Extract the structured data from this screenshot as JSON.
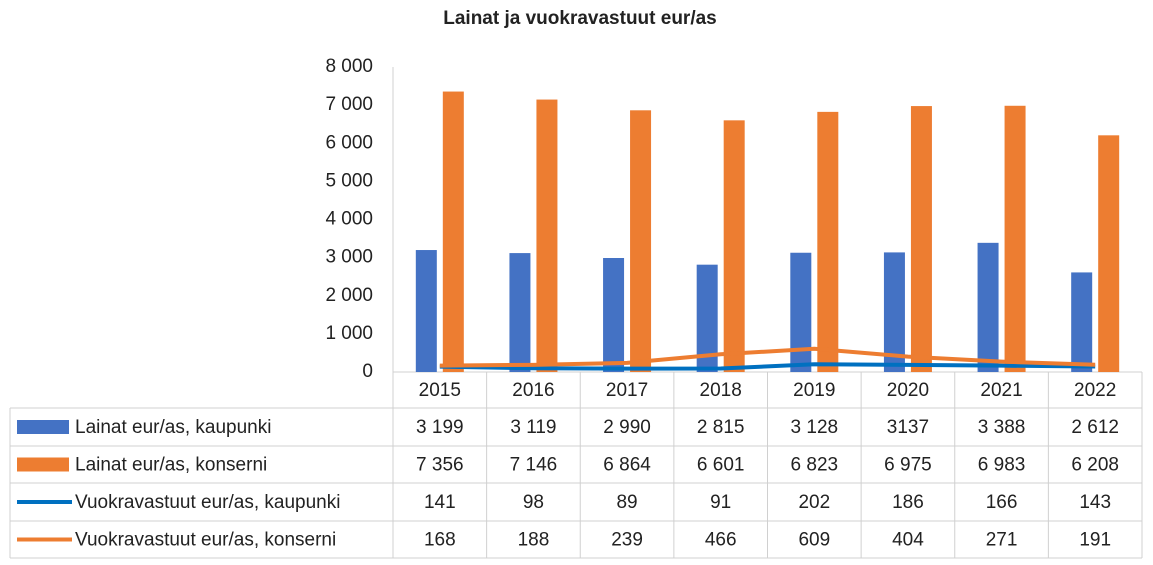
{
  "chart_data": {
    "type": "bar",
    "title": "Lainat ja vuokravastuut eur/as",
    "categories": [
      "2015",
      "2016",
      "2017",
      "2018",
      "2019",
      "2020",
      "2021",
      "2022"
    ],
    "ylim": [
      0,
      8000
    ],
    "yticks": [
      0,
      {
        "value": 1000,
        "label": "1 000"
      },
      {
        "value": 2000,
        "label": "2 000"
      },
      {
        "value": 3000,
        "label": "3 000"
      },
      {
        "value": 4000,
        "label": "4 000"
      },
      {
        "value": 5000,
        "label": "5 000"
      },
      {
        "value": 6000,
        "label": "6 000"
      },
      {
        "value": 7000,
        "label": "7 000"
      },
      {
        "value": 8000,
        "label": "8 000"
      }
    ],
    "grid": false,
    "series": [
      {
        "name": "Lainat eur/as, kaupunki",
        "type": "bar",
        "color": "#4472c4",
        "values": [
          3199,
          3119,
          2990,
          2815,
          3128,
          3137,
          3388,
          2612
        ],
        "value_labels": [
          "3 199",
          "3 119",
          "2 990",
          "2 815",
          "3 128",
          "3137",
          "3 388",
          "2 612"
        ]
      },
      {
        "name": "Lainat eur/as, konserni",
        "type": "bar",
        "color": "#ed7d31",
        "values": [
          7356,
          7146,
          6864,
          6601,
          6823,
          6975,
          6983,
          6208
        ],
        "value_labels": [
          "7 356",
          "7 146",
          "6 864",
          "6 601",
          "6 823",
          "6 975",
          "6 983",
          "6 208"
        ]
      },
      {
        "name": "Vuokravastuut eur/as, kaupunki",
        "type": "line",
        "color": "#0070c0",
        "values": [
          141,
          98,
          89,
          91,
          202,
          186,
          166,
          143
        ]
      },
      {
        "name": "Vuokravastuut eur/as, konserni",
        "type": "line",
        "color": "#ed7d31",
        "values": [
          168,
          188,
          239,
          466,
          609,
          404,
          271,
          191
        ]
      }
    ]
  }
}
